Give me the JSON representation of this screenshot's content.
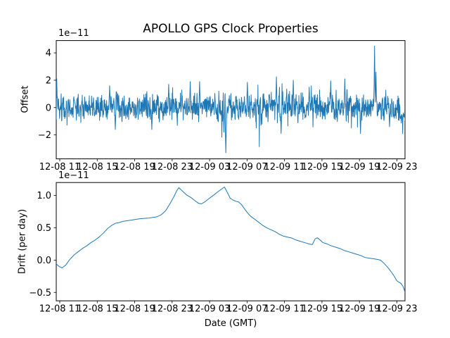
{
  "figure": {
    "title": "APOLLO GPS Clock Properties",
    "background_color": "#ffffff",
    "line_color": "#1f77b4",
    "axis_color": "#000000",
    "grid": false,
    "legend": false
  },
  "chart_data": [
    {
      "type": "line",
      "id": "offset",
      "title": "APOLLO GPS Clock Properties",
      "ylabel": "Offset",
      "scale_label": "1e−11",
      "y_unit_multiplier": 1e-11,
      "x_unit": "hours from left axis edge (labels are MM-DD HH dates)",
      "xlim_hours": [
        0,
        37.24
      ],
      "ylim": [
        -3.75,
        4.9
      ],
      "x_ticks": [
        0.375,
        4.375,
        8.375,
        12.375,
        16.375,
        20.375,
        24.375,
        28.375,
        32.375,
        36.375
      ],
      "x_tick_labels": [
        "12-08 11",
        "12-08 15",
        "12-08 19",
        "12-08 23",
        "12-09 03",
        "12-09 07",
        "12-09 11",
        "12-09 15",
        "12-09 19",
        "12-09 23"
      ],
      "y_ticks": [
        -2,
        0,
        2,
        4
      ],
      "y_tick_labels": [
        "−2",
        "0",
        "2",
        "4"
      ],
      "series_spec": {
        "description": "dense noisy offset series centered on 0 (band roughly ±1) with isolated spikes",
        "t_start": 0,
        "t_end": 37.24,
        "n": 1490,
        "seed": 42,
        "noise_std": 0.45,
        "smooth": 0.35,
        "burst_prob": 0.06,
        "burst_scale": 1.9,
        "end_dip": {
          "t_from": 36.7,
          "mean": -0.55,
          "std": 0.22
        },
        "spikes": [
          {
            "t": 0.05,
            "v": 2.1,
            "w": 2
          },
          {
            "t": 5.7,
            "v": 1.6,
            "w": 2
          },
          {
            "t": 6.3,
            "v": -1.6,
            "w": 2
          },
          {
            "t": 10.2,
            "v": -1.6,
            "w": 2
          },
          {
            "t": 12.0,
            "v": 1.7,
            "w": 2
          },
          {
            "t": 14.3,
            "v": 1.9,
            "w": 2
          },
          {
            "t": 15.3,
            "v": 1.9,
            "w": 2
          },
          {
            "t": 17.9,
            "v": -1.8,
            "w": 2
          },
          {
            "t": 18.1,
            "v": -3.3,
            "w": 3
          },
          {
            "t": 20.4,
            "v": 1.85,
            "w": 2
          },
          {
            "t": 23.5,
            "v": 2.25,
            "w": 2
          },
          {
            "t": 24.0,
            "v": -1.9,
            "w": 2
          },
          {
            "t": 25.3,
            "v": 2.0,
            "w": 2
          },
          {
            "t": 27.0,
            "v": 1.5,
            "w": 2
          },
          {
            "t": 29.3,
            "v": 1.95,
            "w": 2
          },
          {
            "t": 30.8,
            "v": 2.1,
            "w": 2
          },
          {
            "t": 32.5,
            "v": -1.9,
            "w": 2
          },
          {
            "t": 34.0,
            "v": 4.5,
            "w": 2
          },
          {
            "t": 34.15,
            "v": 2.6,
            "w": 2
          },
          {
            "t": 35.6,
            "v": -1.4,
            "w": 2
          },
          {
            "t": 37.0,
            "v": -1.9,
            "w": 1
          }
        ]
      }
    },
    {
      "type": "line",
      "id": "drift",
      "ylabel": "Drift (per day)",
      "xlabel": "Date (GMT)",
      "scale_label": "1e−11",
      "y_unit_multiplier": 1e-11,
      "x_unit": "hours from left axis edge (labels are MM-DD HH dates)",
      "xlim_hours": [
        0,
        37.24
      ],
      "ylim": [
        -0.63,
        1.2
      ],
      "x_ticks": [
        0.375,
        4.375,
        8.375,
        12.375,
        16.375,
        20.375,
        24.375,
        28.375,
        32.375,
        36.375
      ],
      "x_tick_labels": [
        "12-08 11",
        "12-08 15",
        "12-08 19",
        "12-08 23",
        "12-09 03",
        "12-09 07",
        "12-09 11",
        "12-09 15",
        "12-09 19",
        "12-09 23"
      ],
      "y_ticks": [
        -0.5,
        0,
        0.5,
        1
      ],
      "y_tick_labels": [
        "−0.5",
        "0.0",
        "0.5",
        "1.0"
      ],
      "points": [
        [
          0.0,
          -0.06
        ],
        [
          0.32,
          -0.1
        ],
        [
          0.62,
          -0.12
        ],
        [
          1.0,
          -0.08
        ],
        [
          1.45,
          0.01
        ],
        [
          1.9,
          0.08
        ],
        [
          2.35,
          0.13
        ],
        [
          2.8,
          0.18
        ],
        [
          3.25,
          0.22
        ],
        [
          3.7,
          0.27
        ],
        [
          4.15,
          0.31
        ],
        [
          4.6,
          0.36
        ],
        [
          5.05,
          0.42
        ],
        [
          5.5,
          0.49
        ],
        [
          5.95,
          0.54
        ],
        [
          6.33,
          0.57
        ],
        [
          6.7,
          0.58
        ],
        [
          7.16,
          0.6
        ],
        [
          7.6,
          0.61
        ],
        [
          8.05,
          0.62
        ],
        [
          8.5,
          0.63
        ],
        [
          8.96,
          0.64
        ],
        [
          9.4,
          0.645
        ],
        [
          9.86,
          0.65
        ],
        [
          10.3,
          0.66
        ],
        [
          10.76,
          0.67
        ],
        [
          11.2,
          0.7
        ],
        [
          11.66,
          0.76
        ],
        [
          12.1,
          0.86
        ],
        [
          12.56,
          0.98
        ],
        [
          12.86,
          1.07
        ],
        [
          13.08,
          1.12
        ],
        [
          13.46,
          1.07
        ],
        [
          13.9,
          1.01
        ],
        [
          14.36,
          0.97
        ],
        [
          14.8,
          0.92
        ],
        [
          15.18,
          0.88
        ],
        [
          15.5,
          0.87
        ],
        [
          15.86,
          0.9
        ],
        [
          16.3,
          0.95
        ],
        [
          16.76,
          1.0
        ],
        [
          17.2,
          1.05
        ],
        [
          17.66,
          1.1
        ],
        [
          17.96,
          1.13
        ],
        [
          18.26,
          1.05
        ],
        [
          18.56,
          0.96
        ],
        [
          18.86,
          0.93
        ],
        [
          19.16,
          0.91
        ],
        [
          19.47,
          0.9
        ],
        [
          19.77,
          0.86
        ],
        [
          20.07,
          0.8
        ],
        [
          20.37,
          0.74
        ],
        [
          20.74,
          0.68
        ],
        [
          21.12,
          0.64
        ],
        [
          21.57,
          0.59
        ],
        [
          22.02,
          0.54
        ],
        [
          22.47,
          0.5
        ],
        [
          22.92,
          0.47
        ],
        [
          23.37,
          0.44
        ],
        [
          23.82,
          0.4
        ],
        [
          24.27,
          0.37
        ],
        [
          24.72,
          0.355
        ],
        [
          25.17,
          0.34
        ],
        [
          25.62,
          0.31
        ],
        [
          26.07,
          0.29
        ],
        [
          26.53,
          0.27
        ],
        [
          26.98,
          0.25
        ],
        [
          27.35,
          0.24
        ],
        [
          27.65,
          0.33
        ],
        [
          27.88,
          0.345
        ],
        [
          28.18,
          0.31
        ],
        [
          28.48,
          0.27
        ],
        [
          28.93,
          0.25
        ],
        [
          29.38,
          0.22
        ],
        [
          29.83,
          0.2
        ],
        [
          30.28,
          0.18
        ],
        [
          30.73,
          0.15
        ],
        [
          31.18,
          0.13
        ],
        [
          31.63,
          0.11
        ],
        [
          32.08,
          0.09
        ],
        [
          32.53,
          0.07
        ],
        [
          32.98,
          0.04
        ],
        [
          33.43,
          0.03
        ],
        [
          33.88,
          0.02
        ],
        [
          34.33,
          0.01
        ],
        [
          34.63,
          0.0
        ],
        [
          35.0,
          -0.05
        ],
        [
          35.38,
          -0.11
        ],
        [
          35.76,
          -0.18
        ],
        [
          36.13,
          -0.26
        ],
        [
          36.36,
          -0.32
        ],
        [
          36.58,
          -0.34
        ],
        [
          36.81,
          -0.36
        ],
        [
          37.0,
          -0.4
        ],
        [
          37.12,
          -0.44
        ],
        [
          37.24,
          -0.5
        ]
      ]
    }
  ]
}
